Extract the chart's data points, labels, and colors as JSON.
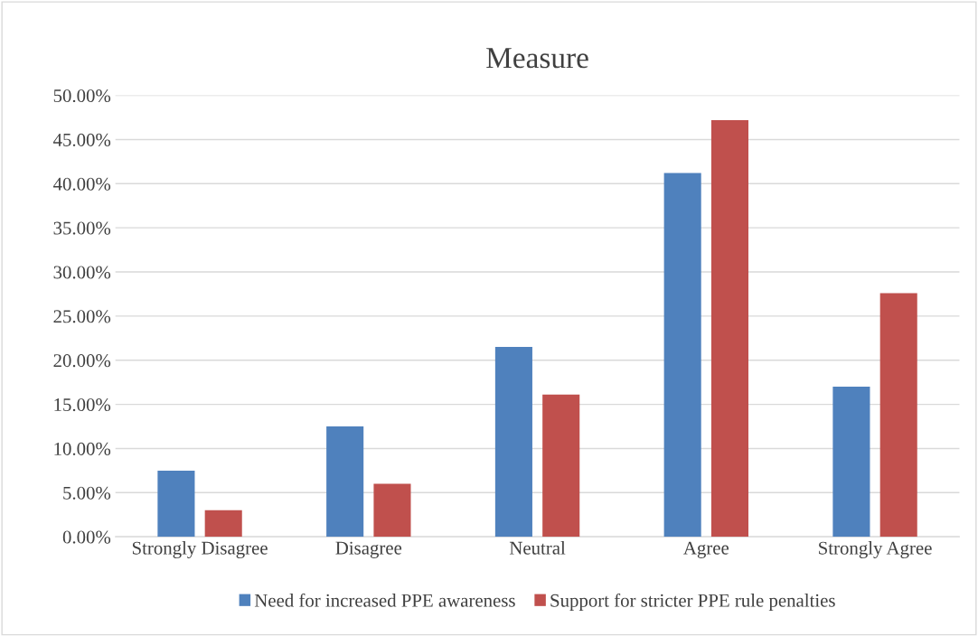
{
  "chart_data": {
    "type": "bar",
    "title": "Measure",
    "categories": [
      "Strongly Disagree",
      "Disagree",
      "Neutral",
      "Agree",
      "Strongly Agree"
    ],
    "series": [
      {
        "name": "Need for increased PPE awareness",
        "color": "#4f81bd",
        "values": [
          7.5,
          12.5,
          21.5,
          41.2,
          17.0
        ]
      },
      {
        "name": "Support for stricter PPE rule penalties",
        "color": "#c0504d",
        "values": [
          3.0,
          6.0,
          16.1,
          47.2,
          27.6
        ]
      }
    ],
    "ylim": [
      0,
      50
    ],
    "yticks": [
      {
        "value": 0,
        "label": "0.00%"
      },
      {
        "value": 5,
        "label": "5.00%"
      },
      {
        "value": 10,
        "label": "10.00%"
      },
      {
        "value": 15,
        "label": "15.00%"
      },
      {
        "value": 20,
        "label": "20.00%"
      },
      {
        "value": 25,
        "label": "25.00%"
      },
      {
        "value": 30,
        "label": "30.00%"
      },
      {
        "value": 35,
        "label": "35.00%"
      },
      {
        "value": 40,
        "label": "40.00%"
      },
      {
        "value": 45,
        "label": "45.00%"
      },
      {
        "value": 50,
        "label": "50.00%"
      }
    ],
    "grid": "y",
    "legend": "bottom"
  }
}
